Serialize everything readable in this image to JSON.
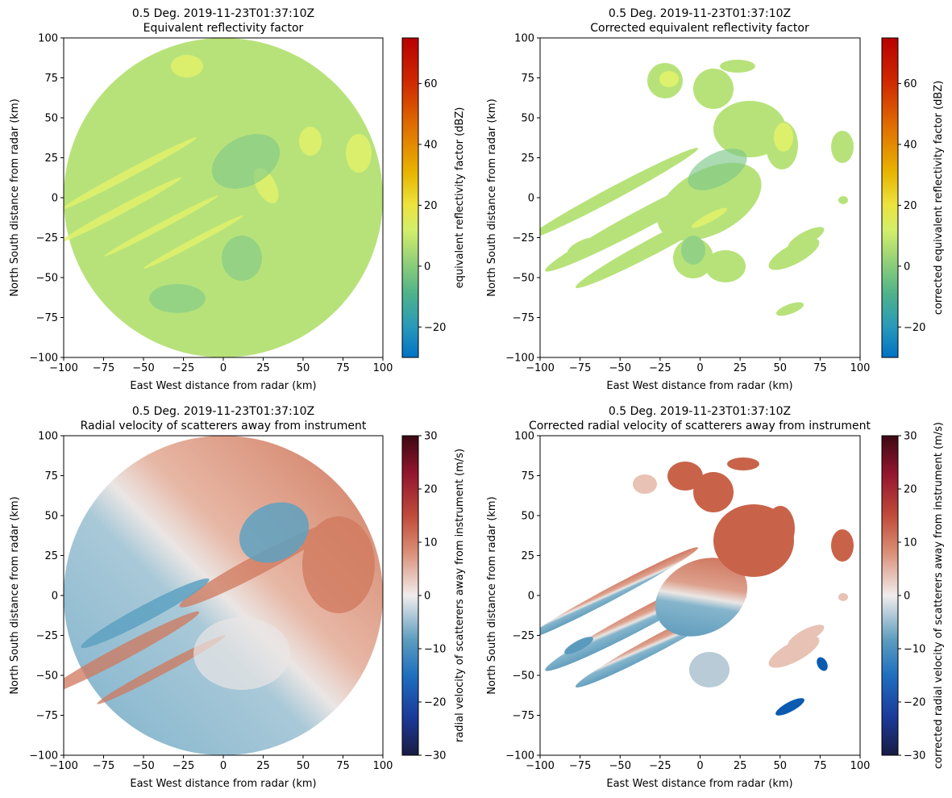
{
  "figure": {
    "panels": [
      {
        "id": "reflectivity",
        "title_line1": "0.5 Deg. 2019-11-23T01:37:10Z",
        "title_line2": "Equivalent reflectivity factor",
        "xlabel": "East West distance from radar (km)",
        "ylabel": "North South distance from radar (km)",
        "colorbar_label": "equivalent reflectivity factor (dBZ)",
        "colormap": "HomeyerRainbow"
      },
      {
        "id": "corrected-reflectivity",
        "title_line1": "0.5 Deg. 2019-11-23T01:37:10Z",
        "title_line2": "Corrected equivalent reflectivity factor",
        "xlabel": "East West distance from radar (km)",
        "ylabel": "North South distance from radar (km)",
        "colorbar_label": "corrected equivalent reflectivity factor (dBZ)",
        "colormap": "HomeyerRainbow"
      },
      {
        "id": "velocity",
        "title_line1": "0.5 Deg. 2019-11-23T01:37:10Z",
        "title_line2": "Radial velocity of scatterers away from instrument",
        "xlabel": "East West distance from radar (km)",
        "ylabel": "North South distance from radar (km)",
        "colorbar_label": "radial velocity of scatterers away from instrument (m/s)",
        "colormap": "balance"
      },
      {
        "id": "corrected-velocity",
        "title_line1": "0.5 Deg. 2019-11-23T01:37:10Z",
        "title_line2": "Corrected radial velocity of scatterers away from instrument",
        "xlabel": "East West distance from radar (km)",
        "ylabel": "North South distance from radar (km)",
        "colorbar_label": "corrected radial velocity of scatterers away from instrument (m/s)",
        "colormap": "balance"
      }
    ]
  },
  "chart_data": [
    {
      "type": "heatmap",
      "projection": "radar PPI",
      "title": "0.5 Deg. 2019-11-23T01:37:10Z Equivalent reflectivity factor",
      "xlabel": "East West distance from radar (km)",
      "ylabel": "North South distance from radar (km)",
      "xlim": [
        -100,
        100
      ],
      "ylim": [
        -100,
        100
      ],
      "xticks": [
        -100,
        -75,
        -50,
        -25,
        0,
        25,
        50,
        75,
        100
      ],
      "yticks": [
        -100,
        -75,
        -50,
        -25,
        0,
        25,
        50,
        75,
        100
      ],
      "colorbar": {
        "label": "equivalent reflectivity factor (dBZ)",
        "range": [
          -30,
          75
        ],
        "ticks": [
          -20,
          0,
          20,
          40,
          60
        ]
      },
      "coverage": "full disk, radius 100 km",
      "typical_value_range": [
        -5,
        20
      ],
      "grid": false
    },
    {
      "type": "heatmap",
      "projection": "radar PPI",
      "title": "0.5 Deg. 2019-11-23T01:37:10Z Corrected equivalent reflectivity factor",
      "xlabel": "East West distance from radar (km)",
      "ylabel": "North South distance from radar (km)",
      "xlim": [
        -100,
        100
      ],
      "ylim": [
        -100,
        100
      ],
      "xticks": [
        -100,
        -75,
        -50,
        -25,
        0,
        25,
        50,
        75,
        100
      ],
      "yticks": [
        -100,
        -75,
        -50,
        -25,
        0,
        25,
        50,
        75,
        100
      ],
      "colorbar": {
        "label": "corrected equivalent reflectivity factor (dBZ)",
        "range": [
          -30,
          75
        ],
        "ticks": [
          -20,
          0,
          20,
          40,
          60
        ]
      },
      "coverage": "masked echoes, SW-NE banded",
      "typical_value_range": [
        -5,
        20
      ],
      "grid": false
    },
    {
      "type": "heatmap",
      "projection": "radar PPI",
      "title": "0.5 Deg. 2019-11-23T01:37:10Z Radial velocity of scatterers away from instrument",
      "xlabel": "East West distance from radar (km)",
      "ylabel": "North South distance from radar (km)",
      "xlim": [
        -100,
        100
      ],
      "ylim": [
        -100,
        100
      ],
      "xticks": [
        -100,
        -75,
        -50,
        -25,
        0,
        25,
        50,
        75,
        100
      ],
      "yticks": [
        -100,
        -75,
        -50,
        -25,
        0,
        25,
        50,
        75,
        100
      ],
      "colorbar": {
        "label": "radial velocity of scatterers away from instrument (m/s)",
        "range": [
          -30,
          30
        ],
        "ticks": [
          -30,
          -20,
          -10,
          0,
          10,
          20,
          30
        ]
      },
      "coverage": "full disk, radius 100 km",
      "typical_value_range": [
        -12,
        12
      ],
      "grid": false
    },
    {
      "type": "heatmap",
      "projection": "radar PPI",
      "title": "0.5 Deg. 2019-11-23T01:37:10Z Corrected radial velocity of scatterers away from instrument",
      "xlabel": "East West distance from radar (km)",
      "ylabel": "North South distance from radar (km)",
      "xlim": [
        -100,
        100
      ],
      "ylim": [
        -100,
        100
      ],
      "xticks": [
        -100,
        -75,
        -50,
        -25,
        0,
        25,
        50,
        75,
        100
      ],
      "yticks": [
        -100,
        -75,
        -50,
        -25,
        0,
        25,
        50,
        75,
        100
      ],
      "colorbar": {
        "label": "corrected radial velocity of scatterers away from instrument (m/s)",
        "range": [
          -30,
          30
        ],
        "ticks": [
          -30,
          -20,
          -10,
          0,
          10,
          20,
          30
        ]
      },
      "coverage": "masked echoes, SW-NE banded",
      "typical_value_range": [
        -18,
        12
      ],
      "grid": false
    }
  ],
  "colors": {
    "refl_background": "#b7e27a",
    "refl_band": "#e4f36a",
    "refl_low": "#7fc98a",
    "vel_positive": "#cd6a4f",
    "vel_neutral": "#ececec",
    "vel_negative": "#5ea2c2",
    "vel_strong_negative": "#0b5bb0"
  }
}
